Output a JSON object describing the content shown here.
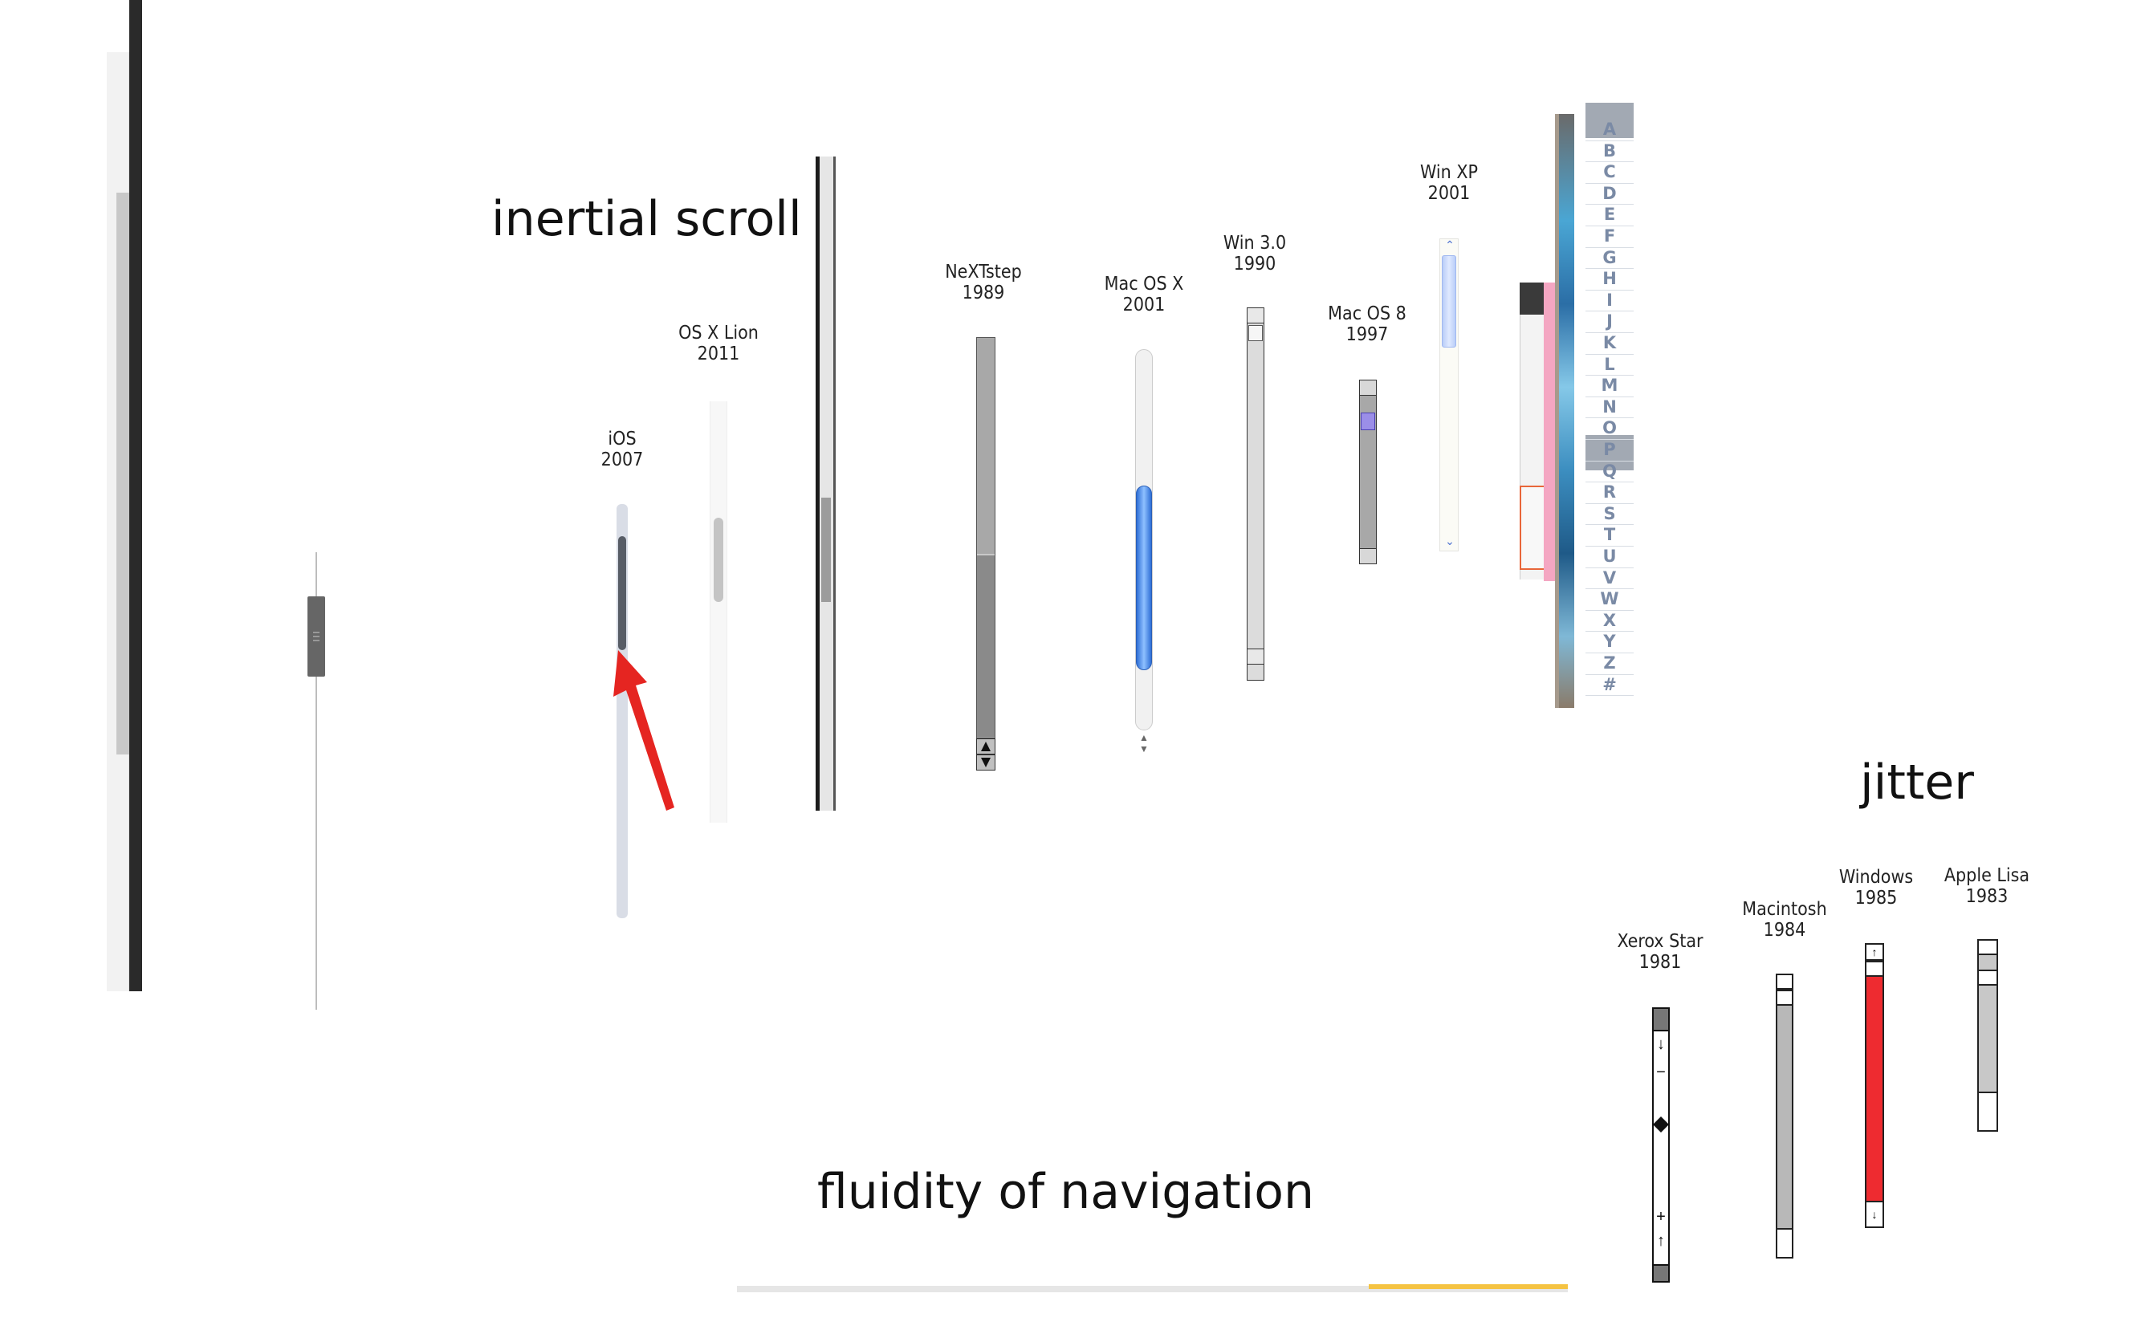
{
  "headings": {
    "inertial": "inertial scroll",
    "jitter": "jitter",
    "fluidity": "fluidity of navigation"
  },
  "scrollbars": [
    {
      "name": "iOS",
      "year": "2007"
    },
    {
      "name": "OS X Lion",
      "year": "2011"
    },
    {
      "name": "NeXTstep",
      "year": "1989"
    },
    {
      "name": "Mac OS X",
      "year": "2001"
    },
    {
      "name": "Win 3.0",
      "year": "1990"
    },
    {
      "name": "Mac OS 8",
      "year": "1997"
    },
    {
      "name": "Win XP",
      "year": "2001"
    },
    {
      "name": "Xerox Star",
      "year": "1981"
    },
    {
      "name": "Macintosh",
      "year": "1984"
    },
    {
      "name": "Windows",
      "year": "1985"
    },
    {
      "name": "Apple Lisa",
      "year": "1983"
    }
  ],
  "alphabet": [
    "A",
    "B",
    "C",
    "D",
    "E",
    "F",
    "G",
    "H",
    "I",
    "J",
    "K",
    "L",
    "M",
    "N",
    "O",
    "P",
    "Q",
    "R",
    "S",
    "T",
    "U",
    "V",
    "W",
    "X",
    "Y",
    "Z",
    "#"
  ],
  "colors": {
    "text": "#111111",
    "ios_thumb": "#585d66",
    "mac_blue": "#3d7ee6",
    "windows_red": "#ee2b30",
    "arrow": "#e52521",
    "yellow_strip": "#f5c342",
    "index_letters": "#7a8aa5"
  },
  "icons": [
    "red-arrow-icon",
    "scroll-up-arrow-icon",
    "scroll-down-arrow-icon",
    "diamond-thumb-icon"
  ]
}
